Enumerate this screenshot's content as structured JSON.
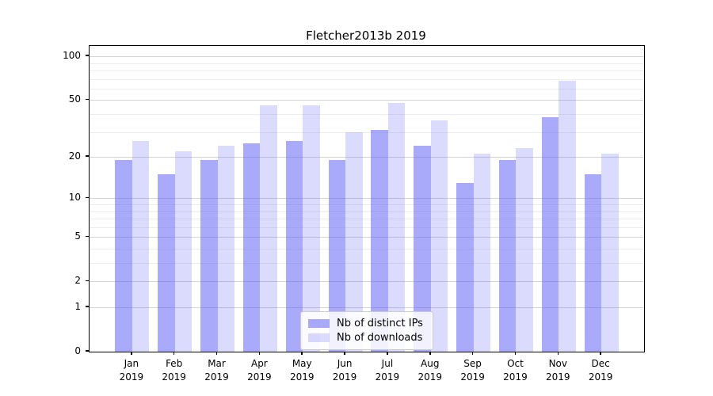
{
  "title": "Fletcher2013b 2019",
  "chart_data": {
    "type": "bar",
    "title": "Fletcher2013b 2019",
    "categories": [
      "Jan",
      "Feb",
      "Mar",
      "Apr",
      "May",
      "Jun",
      "Jul",
      "Aug",
      "Sep",
      "Oct",
      "Nov",
      "Dec"
    ],
    "category_year": "2019",
    "series": [
      {
        "name": "Nb of distinct IPs",
        "color": "rgba(85,85,245,0.50)",
        "values": [
          19,
          15,
          19,
          25,
          26,
          19,
          31,
          24,
          13,
          19,
          38,
          15
        ]
      },
      {
        "name": "Nb of downloads",
        "color": "rgba(85,85,245,0.21)",
        "values": [
          26,
          22,
          24,
          46,
          46,
          30,
          48,
          36,
          21,
          23,
          68,
          21
        ]
      }
    ],
    "y_scale": "log1p",
    "y_ticks": [
      0,
      1,
      2,
      5,
      10,
      20,
      50,
      100
    ],
    "y_minor_ticks": [
      3,
      4,
      6,
      7,
      8,
      9,
      30,
      40,
      60,
      70,
      80,
      90
    ],
    "ylim": [
      0,
      118
    ],
    "grid": true,
    "legend_position": "lower-center"
  },
  "legend": {
    "items": [
      "Nb of distinct IPs",
      "Nb of downloads"
    ]
  },
  "colors": {
    "bar_dark": "rgba(85,85,245,0.50)",
    "bar_light": "rgba(85,85,245,0.21)",
    "grid_major": "#d4d4d4",
    "grid_minor": "#ededed",
    "spine": "#000000"
  }
}
